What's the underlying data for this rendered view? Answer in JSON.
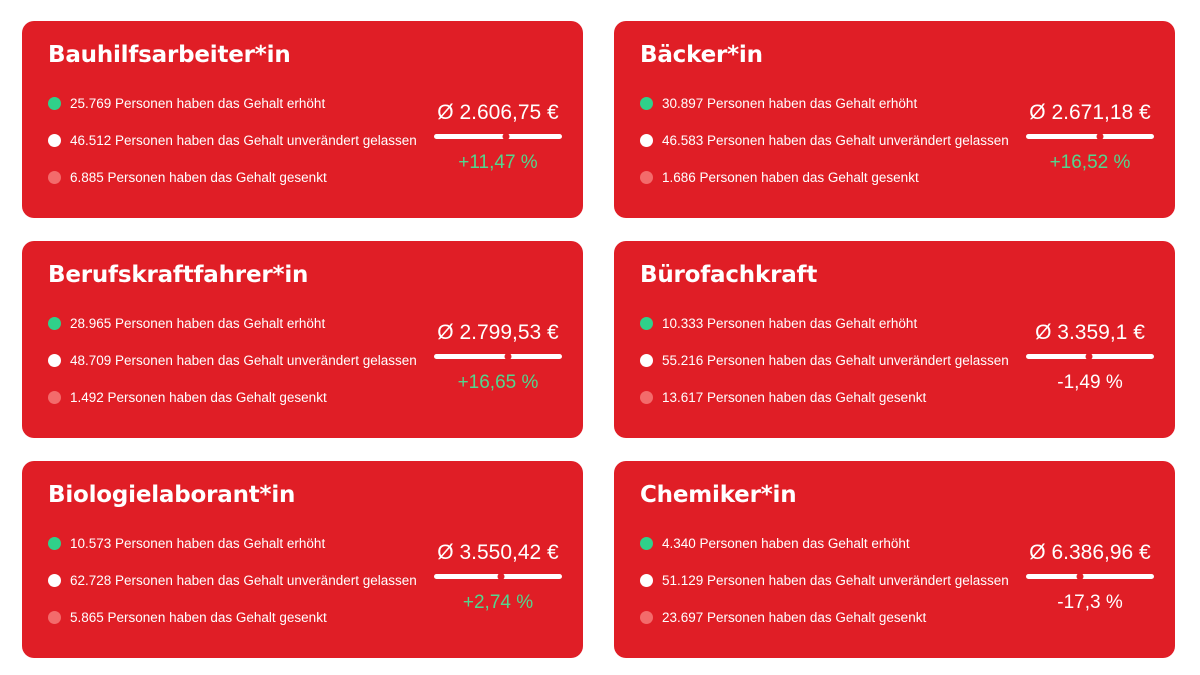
{
  "cards": [
    {
      "title": "Bauhilfsarbeiter*in",
      "raised": "25.769 Personen haben das Gehalt erhöht",
      "unchanged": "46.512 Personen haben das Gehalt unverändert gelassen",
      "lowered": "6.885 Personen haben das Gehalt gesenkt",
      "average": "Ø 2.606,75 €",
      "change": "+11,47 %",
      "change_direction": "up",
      "marker_level": 0.56
    },
    {
      "title": "Bäcker*in",
      "raised": "30.897 Personen haben das Gehalt erhöht",
      "unchanged": "46.583 Personen haben das Gehalt unverändert gelassen",
      "lowered": "1.686 Personen haben das Gehalt gesenkt",
      "average": "Ø 2.671,18 €",
      "change": "+16,52 %",
      "change_direction": "up",
      "marker_level": 0.58
    },
    {
      "title": "Berufskraftfahrer*in",
      "raised": "28.965 Personen haben das Gehalt erhöht",
      "unchanged": "48.709 Personen haben das Gehalt unverändert gelassen",
      "lowered": "1.492 Personen haben das Gehalt gesenkt",
      "average": "Ø 2.799,53 €",
      "change": "+16,65 %",
      "change_direction": "up",
      "marker_level": 0.58
    },
    {
      "title": "Bürofachkraft",
      "raised": "10.333 Personen haben das Gehalt erhöht",
      "unchanged": "55.216 Personen haben das Gehalt unverändert gelassen",
      "lowered": "13.617 Personen haben das Gehalt gesenkt",
      "average": "Ø 3.359,1 €",
      "change": "-1,49 %",
      "change_direction": "down",
      "marker_level": 0.49
    },
    {
      "title": "Biologielaborant*in",
      "raised": "10.573 Personen haben das Gehalt erhöht",
      "unchanged": "62.728 Personen haben das Gehalt unverändert gelassen",
      "lowered": "5.865 Personen haben das Gehalt gesenkt",
      "average": "Ø 3.550,42 €",
      "change": "+2,74 %",
      "change_direction": "up",
      "marker_level": 0.52
    },
    {
      "title": "Chemiker*in",
      "raised": "4.340 Personen haben das Gehalt erhöht",
      "unchanged": "51.129 Personen haben das Gehalt unverändert gelassen",
      "lowered": "23.697 Personen haben das Gehalt gesenkt",
      "average": "Ø 6.386,96 €",
      "change": "-17,3 %",
      "change_direction": "down",
      "marker_level": 0.42
    }
  ],
  "colors": {
    "card_background": "#e01e26",
    "raised_dot": "#2fd18a",
    "unchanged_dot": "#ffffff",
    "lowered_dot": "#f36b6b",
    "positive_change": "#52d68e",
    "negative_change": "#ffffff"
  }
}
